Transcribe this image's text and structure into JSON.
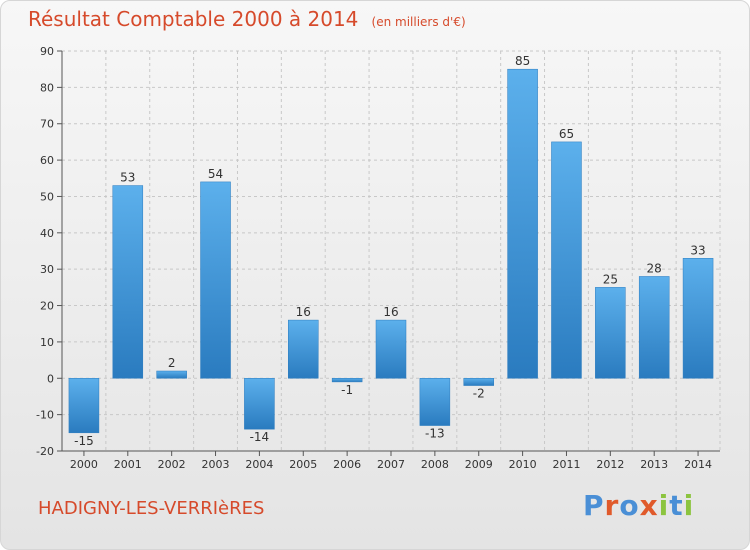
{
  "header": {
    "title": "Résultat Comptable 2000 à 2014",
    "unit": "(en milliers d'€)"
  },
  "footer": {
    "commune": "HADIGNY-LES-VERRIèRES",
    "brand": {
      "text": "Proxiti",
      "letter_colors": [
        "#4a8fd6",
        "#e05a2b",
        "#4a8fd6",
        "#e05a2b",
        "#8cc43f",
        "#4a8fd6",
        "#8cc43f"
      ]
    }
  },
  "colors": {
    "bar_dark": "#2a7bbf",
    "bar_light": "#5cb0ec",
    "axis": "#555555",
    "grid": "#c8c8c8",
    "text": "#333333"
  },
  "chart_data": {
    "type": "bar",
    "categories": [
      "2000",
      "2001",
      "2002",
      "2003",
      "2004",
      "2005",
      "2006",
      "2007",
      "2008",
      "2009",
      "2010",
      "2011",
      "2012",
      "2013",
      "2014"
    ],
    "values": [
      -15,
      53,
      2,
      54,
      -14,
      16,
      -1,
      16,
      -13,
      -2,
      85,
      65,
      25,
      28,
      33
    ],
    "ylim": [
      -20,
      90
    ],
    "yticks": [
      -20,
      -10,
      0,
      10,
      20,
      30,
      40,
      50,
      60,
      70,
      80,
      90
    ],
    "grid": true
  }
}
